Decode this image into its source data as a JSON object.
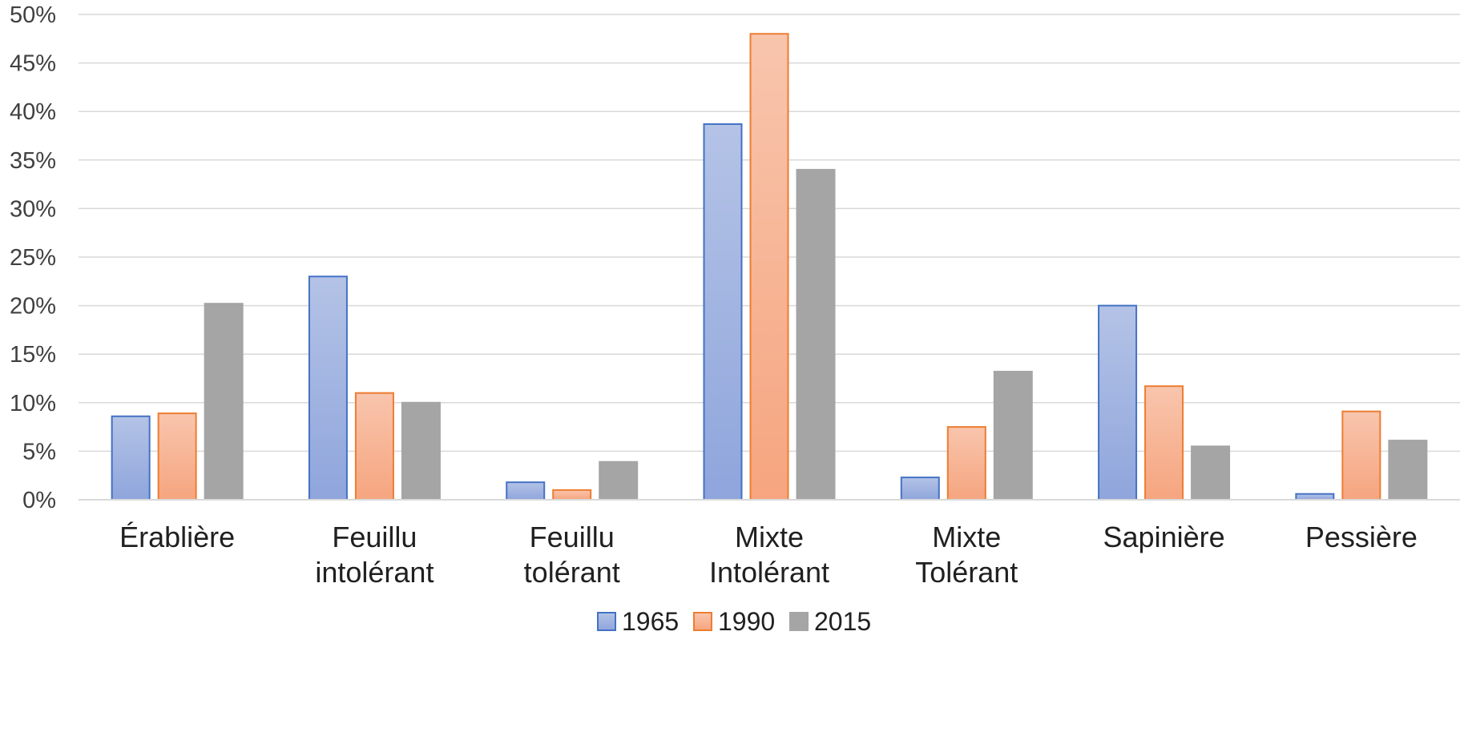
{
  "chart_data": {
    "type": "bar",
    "categories": [
      [
        "Érablière"
      ],
      [
        "Feuillu",
        "intolérant"
      ],
      [
        "Feuillu",
        "tolérant"
      ],
      [
        "Mixte",
        "Intolérant"
      ],
      [
        "Mixte",
        "Tolérant"
      ],
      [
        "Sapinière"
      ],
      [
        "Pessière"
      ]
    ],
    "series": [
      {
        "name": "1965",
        "values": [
          8.6,
          23.0,
          1.8,
          38.7,
          2.3,
          20.0,
          0.6
        ],
        "stroke": "#4472C4",
        "fill_top": "#B4C3E6",
        "fill_bottom": "#8FA5DC"
      },
      {
        "name": "1990",
        "values": [
          8.9,
          11.0,
          1.0,
          48.0,
          7.5,
          11.7,
          9.1
        ],
        "stroke": "#ED7D31",
        "fill_top": "#F8C5AD",
        "fill_bottom": "#F6A57F"
      },
      {
        "name": "2015",
        "values": [
          20.2,
          10.0,
          3.9,
          34.0,
          13.2,
          5.5,
          6.1
        ],
        "stroke": "#A5A5A5",
        "fill_top": "#A5A5A5",
        "fill_bottom": "#A5A5A5"
      }
    ],
    "y_ticks": [
      "0%",
      "5%",
      "10%",
      "15%",
      "20%",
      "25%",
      "30%",
      "35%",
      "40%",
      "45%",
      "50%"
    ],
    "ylim": [
      0,
      50
    ],
    "y_unit": "%",
    "grid": true,
    "legend": "bottom-center",
    "gridline_color": "#D9D9D9"
  }
}
